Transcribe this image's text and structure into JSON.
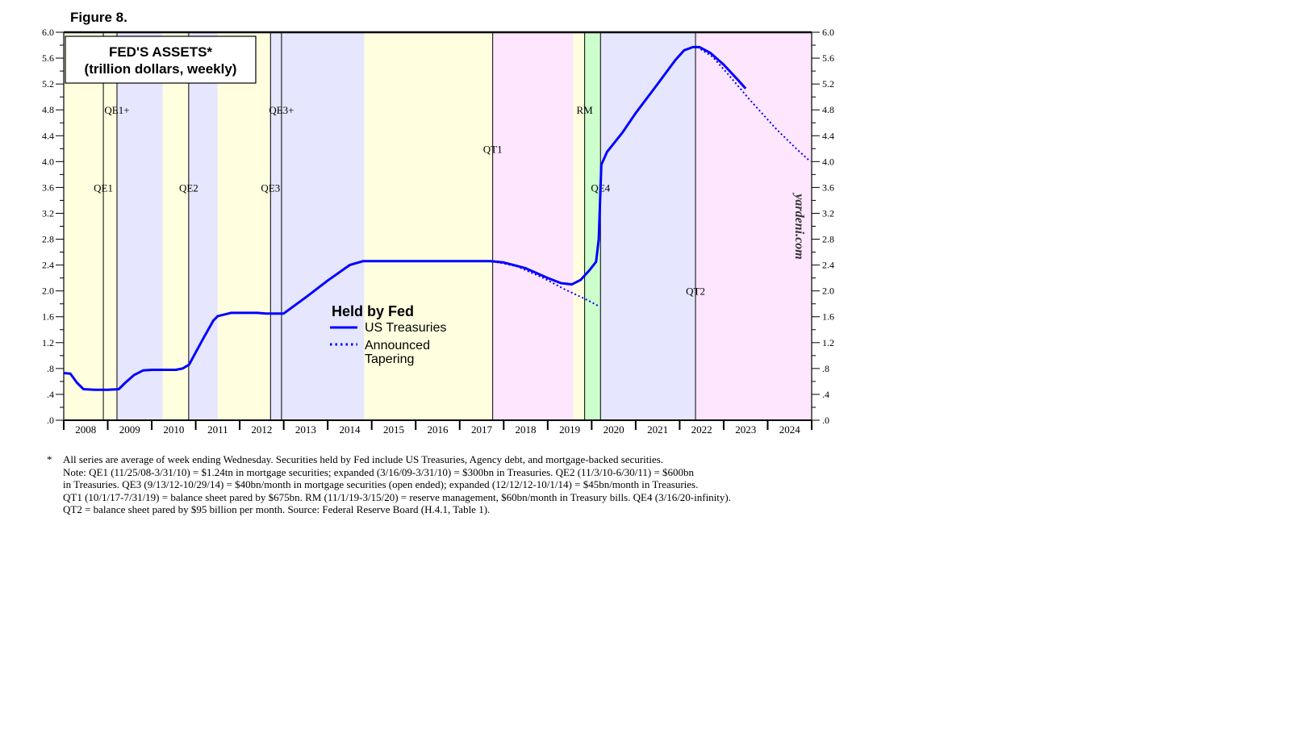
{
  "figure_label": "Figure 8.",
  "chart_data": {
    "type": "line",
    "title": "FED'S ASSETS*",
    "subtitle": "(trillion dollars, weekly)",
    "watermark": "yardeni.com",
    "ylim": [
      0,
      6.0
    ],
    "xlim": [
      2008.0,
      2025.0
    ],
    "y_ticks": [
      {
        "v": 0,
        "label": ".0"
      },
      {
        "v": 0.4,
        "label": ".4"
      },
      {
        "v": 0.8,
        "label": ".8"
      },
      {
        "v": 1.2,
        "label": "1.2"
      },
      {
        "v": 1.6,
        "label": "1.6"
      },
      {
        "v": 2.0,
        "label": "2.0"
      },
      {
        "v": 2.4,
        "label": "2.4"
      },
      {
        "v": 2.8,
        "label": "2.8"
      },
      {
        "v": 3.2,
        "label": "3.2"
      },
      {
        "v": 3.6,
        "label": "3.6"
      },
      {
        "v": 4.0,
        "label": "4.0"
      },
      {
        "v": 4.4,
        "label": "4.4"
      },
      {
        "v": 4.8,
        "label": "4.8"
      },
      {
        "v": 5.2,
        "label": "5.2"
      },
      {
        "v": 5.6,
        "label": "5.6"
      },
      {
        "v": 6.0,
        "label": "6.0"
      }
    ],
    "years": [
      "2008",
      "2009",
      "2010",
      "2011",
      "2012",
      "2013",
      "2014",
      "2015",
      "2016",
      "2017",
      "2018",
      "2019",
      "2020",
      "2021",
      "2022",
      "2023",
      "2024"
    ],
    "legend": {
      "title": "Held by Fed",
      "items": [
        {
          "label": "US Treasuries",
          "style": "solid"
        },
        {
          "label": "Announced",
          "label2": "Tapering",
          "style": "dotted"
        }
      ]
    },
    "line_color": "#0000ff",
    "shaded_periods": [
      {
        "start": 2008.0,
        "end": 2008.9,
        "color": "#ffffe0"
      },
      {
        "start": 2008.9,
        "end": 2009.2,
        "color": "#ffffe0"
      },
      {
        "start": 2009.2,
        "end": 2010.25,
        "color": "#e6e6ff"
      },
      {
        "start": 2010.25,
        "end": 2010.84,
        "color": "#ffffe0"
      },
      {
        "start": 2010.84,
        "end": 2011.5,
        "color": "#e6e6ff"
      },
      {
        "start": 2011.5,
        "end": 2012.7,
        "color": "#ffffe0"
      },
      {
        "start": 2012.7,
        "end": 2014.83,
        "color": "#e6e6ff"
      },
      {
        "start": 2014.83,
        "end": 2017.75,
        "color": "#ffffe0"
      },
      {
        "start": 2017.75,
        "end": 2019.58,
        "color": "#ffe6ff"
      },
      {
        "start": 2019.58,
        "end": 2019.84,
        "color": "#ffffe0"
      },
      {
        "start": 2019.84,
        "end": 2020.2,
        "color": "#ccffcc"
      },
      {
        "start": 2020.2,
        "end": 2022.36,
        "color": "#e6e6ff"
      },
      {
        "start": 2022.36,
        "end": 2025.0,
        "color": "#ffe6ff"
      }
    ],
    "event_lines": [
      {
        "x": 2008.9,
        "label": "QE1",
        "label_y": 3.6
      },
      {
        "x": 2009.21,
        "label": "QE1+",
        "label_y": 4.8
      },
      {
        "x": 2010.84,
        "label": "QE2",
        "label_y": 3.6
      },
      {
        "x": 2012.7,
        "label": "QE3",
        "label_y": 3.6
      },
      {
        "x": 2012.95,
        "label": "QE3+",
        "label_y": 4.8
      },
      {
        "x": 2017.75,
        "label": "QT1",
        "label_y": 4.2
      },
      {
        "x": 2019.84,
        "label": "RM",
        "label_y": 4.8
      },
      {
        "x": 2020.2,
        "label": "QE4",
        "label_y": 3.6
      },
      {
        "x": 2022.36,
        "label": "QT2",
        "label_y": 2.0
      }
    ],
    "series": [
      {
        "name": "US Treasuries",
        "style": "solid",
        "points": [
          [
            2008.0,
            0.73
          ],
          [
            2008.15,
            0.72
          ],
          [
            2008.3,
            0.58
          ],
          [
            2008.45,
            0.48
          ],
          [
            2008.7,
            0.47
          ],
          [
            2009.0,
            0.47
          ],
          [
            2009.25,
            0.48
          ],
          [
            2009.4,
            0.58
          ],
          [
            2009.6,
            0.7
          ],
          [
            2009.8,
            0.77
          ],
          [
            2010.0,
            0.78
          ],
          [
            2010.3,
            0.78
          ],
          [
            2010.55,
            0.78
          ],
          [
            2010.7,
            0.8
          ],
          [
            2010.85,
            0.86
          ],
          [
            2011.0,
            1.05
          ],
          [
            2011.2,
            1.3
          ],
          [
            2011.4,
            1.54
          ],
          [
            2011.5,
            1.61
          ],
          [
            2011.8,
            1.66
          ],
          [
            2012.0,
            1.66
          ],
          [
            2012.2,
            1.66
          ],
          [
            2012.4,
            1.66
          ],
          [
            2012.6,
            1.65
          ],
          [
            2013.0,
            1.65
          ],
          [
            2013.5,
            1.9
          ],
          [
            2014.0,
            2.16
          ],
          [
            2014.5,
            2.4
          ],
          [
            2014.8,
            2.46
          ],
          [
            2015.0,
            2.46
          ],
          [
            2016.0,
            2.46
          ],
          [
            2017.0,
            2.46
          ],
          [
            2017.7,
            2.46
          ],
          [
            2018.0,
            2.44
          ],
          [
            2018.5,
            2.35
          ],
          [
            2019.0,
            2.2
          ],
          [
            2019.3,
            2.12
          ],
          [
            2019.55,
            2.1
          ],
          [
            2019.75,
            2.17
          ],
          [
            2019.95,
            2.32
          ],
          [
            2020.1,
            2.45
          ],
          [
            2020.16,
            2.8
          ],
          [
            2020.22,
            3.95
          ],
          [
            2020.35,
            4.15
          ],
          [
            2020.7,
            4.45
          ],
          [
            2021.0,
            4.75
          ],
          [
            2021.5,
            5.2
          ],
          [
            2021.9,
            5.57
          ],
          [
            2022.1,
            5.72
          ],
          [
            2022.3,
            5.77
          ],
          [
            2022.45,
            5.77
          ],
          [
            2022.7,
            5.68
          ],
          [
            2023.0,
            5.5
          ],
          [
            2023.3,
            5.28
          ],
          [
            2023.5,
            5.13
          ]
        ]
      },
      {
        "name": "Announced Tapering",
        "style": "dotted",
        "segments": [
          [
            [
              2017.75,
              2.46
            ],
            [
              2018.3,
              2.38
            ],
            [
              2018.9,
              2.2
            ],
            [
              2019.4,
              2.02
            ],
            [
              2019.9,
              1.86
            ],
            [
              2020.17,
              1.76
            ]
          ],
          [
            [
              2022.4,
              5.77
            ],
            [
              2022.75,
              5.62
            ],
            [
              2023.1,
              5.35
            ],
            [
              2023.6,
              4.95
            ],
            [
              2024.2,
              4.5
            ],
            [
              2024.65,
              4.2
            ],
            [
              2024.97,
              4.0
            ]
          ]
        ]
      }
    ]
  },
  "footnote": {
    "marker": "*",
    "lines": [
      "All series are average of week ending Wednesday. Securities held by Fed include US Treasuries, Agency debt, and mortgage-backed securities.",
      "Note: QE1 (11/25/08-3/31/10) = $1.24tn in mortgage securities; expanded (3/16/09-3/31/10) = $300bn in Treasuries. QE2 (11/3/10-6/30/11) = $600bn",
      "in Treasuries. QE3 (9/13/12-10/29/14) = $40bn/month in mortgage securities (open ended); expanded (12/12/12-10/1/14) = $45bn/month in Treasuries.",
      "QT1 (10/1/17-7/31/19) = balance sheet pared by $675bn. RM (11/1/19-3/15/20) = reserve management, $60bn/month in Treasury bills. QE4 (3/16/20-infinity).",
      "QT2 = balance sheet pared by $95 billion per month. Source: Federal Reserve Board (H.4.1, Table 1)."
    ]
  }
}
